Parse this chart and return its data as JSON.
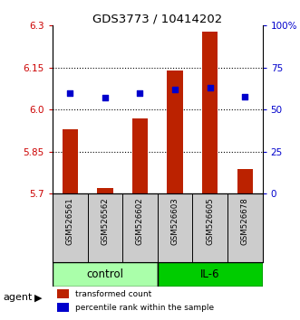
{
  "title": "GDS3773 / 10414202",
  "samples": [
    "GSM526561",
    "GSM526562",
    "GSM526602",
    "GSM526603",
    "GSM526605",
    "GSM526678"
  ],
  "groups": [
    "control",
    "control",
    "control",
    "IL-6",
    "IL-6",
    "IL-6"
  ],
  "bar_values": [
    5.93,
    5.72,
    5.97,
    6.14,
    6.28,
    5.79
  ],
  "bar_bottom": 5.7,
  "percentile_values": [
    60,
    57,
    60,
    62,
    63,
    58
  ],
  "percentile_scale_min": 0,
  "percentile_scale_max": 100,
  "ymin": 5.7,
  "ymax": 6.3,
  "yticks": [
    5.7,
    5.85,
    6.0,
    6.15,
    6.3
  ],
  "right_yticks": [
    0,
    25,
    50,
    75,
    100
  ],
  "right_yticklabels": [
    "0",
    "25",
    "50",
    "75",
    "100%"
  ],
  "bar_color": "#BB2200",
  "percentile_color": "#0000CC",
  "control_color": "#AAFFAA",
  "il6_color": "#00CC00",
  "group_label_control": "control",
  "group_label_il6": "IL-6",
  "agent_label": "agent",
  "legend_bar": "transformed count",
  "legend_pct": "percentile rank within the sample",
  "xlabel_color": "#CC0000",
  "right_axis_color": "#0000CC",
  "gridline_values": [
    5.85,
    6.0,
    6.15
  ],
  "label_bg_color": "#CCCCCC"
}
